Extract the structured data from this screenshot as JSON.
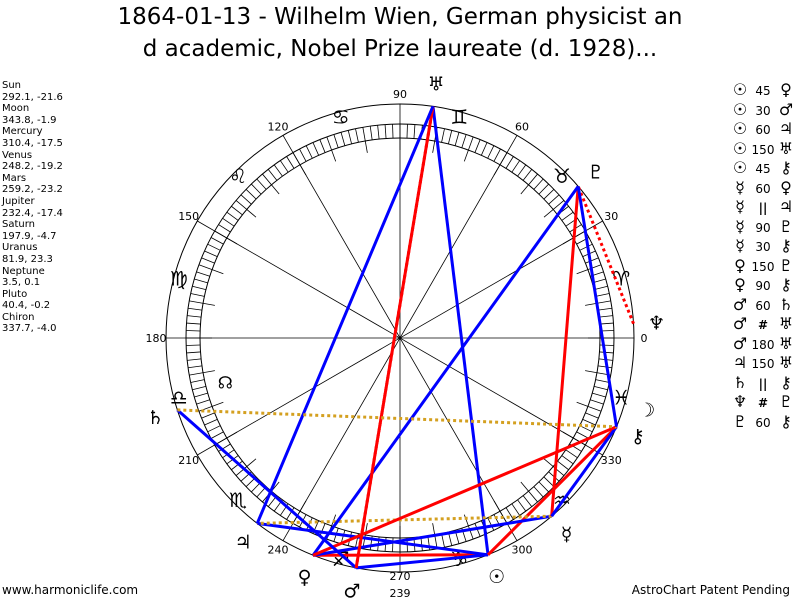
{
  "title": {
    "line1": "1864-01-13 - Wilhelm Wien, German physicist an",
    "line2": "d academic, Nobel Prize laureate (d. 1928)..."
  },
  "footer": {
    "left": "www.harmoniclife.com",
    "right": "AstroChart Patent Pending"
  },
  "chart_data": {
    "type": "astrology-wheel",
    "ascendant_label": "239",
    "degree_labels": [
      "0",
      "30",
      "60",
      "90",
      "120",
      "150",
      "180",
      "210",
      "240",
      "270",
      "300",
      "330"
    ],
    "signs": [
      "♈",
      "♉",
      "♊",
      "♋",
      "♌",
      "♍",
      "♎",
      "♏",
      "♐",
      "♑",
      "♒",
      "♓"
    ],
    "north_node": {
      "glyph": "☊",
      "lon": 194
    },
    "planets": [
      {
        "name": "Sun",
        "coords": "292.1, -21.6",
        "lon": 292.1,
        "glyph": "☉"
      },
      {
        "name": "Moon",
        "coords": "343.8, -1.9",
        "lon": 343.8,
        "glyph": "☽"
      },
      {
        "name": "Mercury",
        "coords": "310.4, -17.5",
        "lon": 310.4,
        "glyph": "☿"
      },
      {
        "name": "Venus",
        "coords": "248.2, -19.2",
        "lon": 248.2,
        "glyph": "♀"
      },
      {
        "name": "Mars",
        "coords": "259.2, -23.2",
        "lon": 259.2,
        "glyph": "♂"
      },
      {
        "name": "Jupiter",
        "coords": "232.4, -17.4",
        "lon": 232.4,
        "glyph": "♃"
      },
      {
        "name": "Saturn",
        "coords": "197.9, -4.7",
        "lon": 197.9,
        "glyph": "♄"
      },
      {
        "name": "Uranus",
        "coords": "81.9, 23.3",
        "lon": 81.9,
        "glyph": "♅"
      },
      {
        "name": "Neptune",
        "coords": "3.5, 0.1",
        "lon": 3.5,
        "glyph": "♆"
      },
      {
        "name": "Pluto",
        "coords": "40.4, -0.2",
        "lon": 40.4,
        "glyph": "♇"
      },
      {
        "name": "Chiron",
        "coords": "337.7, -4.0",
        "lon": 337.7,
        "glyph": "⚷"
      }
    ],
    "aspect_colors": {
      "hard": "#ff0000",
      "soft": "#0000ff",
      "parallel": "#d4a020",
      "contraparallel": "#ff0000"
    },
    "aspects": [
      {
        "p1": "Sun",
        "aspect": "45",
        "p2": "Venus",
        "kind": "hard"
      },
      {
        "p1": "Sun",
        "aspect": "30",
        "p2": "Mars",
        "kind": "soft"
      },
      {
        "p1": "Sun",
        "aspect": "60",
        "p2": "Jupiter",
        "kind": "soft"
      },
      {
        "p1": "Sun",
        "aspect": "150",
        "p2": "Uranus",
        "kind": "soft"
      },
      {
        "p1": "Sun",
        "aspect": "45",
        "p2": "Chiron",
        "kind": "hard"
      },
      {
        "p1": "Mercury",
        "aspect": "60",
        "p2": "Venus",
        "kind": "soft"
      },
      {
        "p1": "Mercury",
        "aspect": "||",
        "p2": "Jupiter",
        "kind": "parallel"
      },
      {
        "p1": "Mercury",
        "aspect": "90",
        "p2": "Pluto",
        "kind": "hard"
      },
      {
        "p1": "Mercury",
        "aspect": "30",
        "p2": "Chiron",
        "kind": "soft"
      },
      {
        "p1": "Venus",
        "aspect": "150",
        "p2": "Pluto",
        "kind": "soft"
      },
      {
        "p1": "Venus",
        "aspect": "90",
        "p2": "Chiron",
        "kind": "hard"
      },
      {
        "p1": "Mars",
        "aspect": "60",
        "p2": "Saturn",
        "kind": "soft"
      },
      {
        "p1": "Mars",
        "aspect": "#",
        "p2": "Uranus",
        "kind": "contraparallel"
      },
      {
        "p1": "Mars",
        "aspect": "180",
        "p2": "Uranus",
        "kind": "hard"
      },
      {
        "p1": "Jupiter",
        "aspect": "150",
        "p2": "Uranus",
        "kind": "soft"
      },
      {
        "p1": "Saturn",
        "aspect": "||",
        "p2": "Chiron",
        "kind": "parallel"
      },
      {
        "p1": "Neptune",
        "aspect": "#",
        "p2": "Pluto",
        "kind": "contraparallel"
      },
      {
        "p1": "Pluto",
        "aspect": "60",
        "p2": "Chiron",
        "kind": "soft"
      }
    ]
  }
}
